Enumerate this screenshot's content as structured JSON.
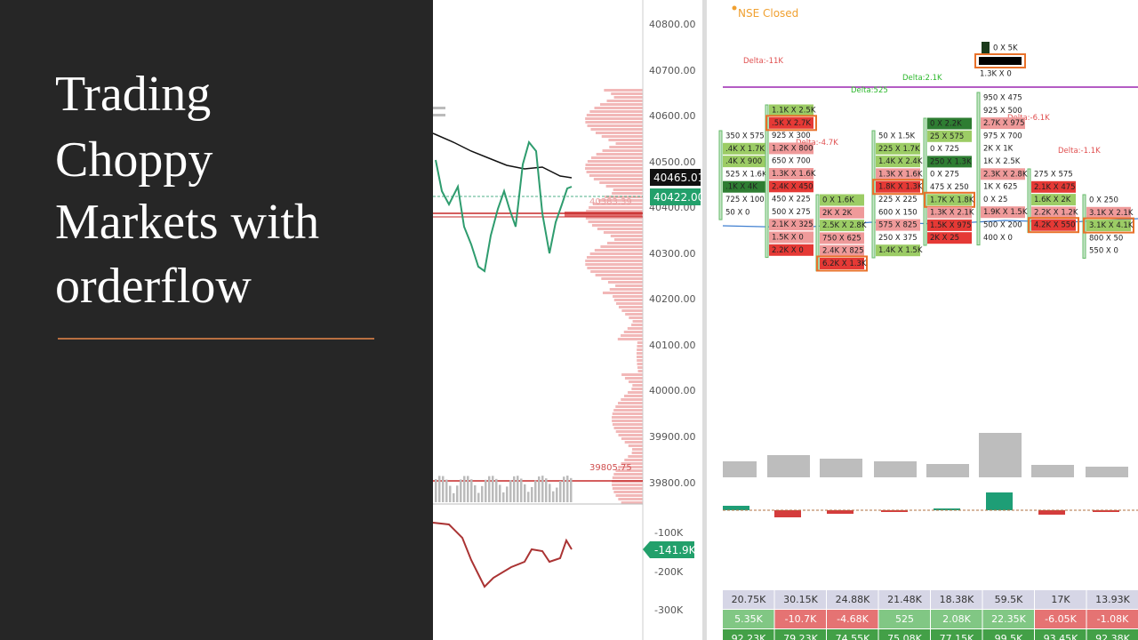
{
  "slide": {
    "title_lines": [
      "Trading",
      "Choppy",
      "Markets with",
      "orderflow"
    ]
  },
  "left_chart": {
    "price_axis": [
      "40800.00",
      "40700.00",
      "40600.00",
      "40500.00",
      "40400.00",
      "40300.00",
      "40200.00",
      "40100.00",
      "40000.00",
      "39900.00",
      "39800.00"
    ],
    "price_tags": [
      "40465.01",
      "40422.00"
    ],
    "profile_labels": [
      "40383.39",
      "39805.75"
    ],
    "delta_axis": [
      "-100K",
      "-200K",
      "-300K"
    ],
    "delta_tag": "-141.9K"
  },
  "right_chart": {
    "status": "NSE Closed",
    "delta_labels": [
      "Delta:-11K",
      "Delta:2.1K",
      "Delta:525",
      "Delta:-4.7K",
      "Delta:-6.1K",
      "Delta:-1.1K"
    ],
    "top_cells": [
      "0 X 5K",
      "1.3K X 0"
    ],
    "columns": [
      {
        "cells": [
          "350 X 575",
          ".4K X 1.7K",
          ".4K X 900",
          "525 X 1.6K",
          ".1K X 4K",
          "725 X 100",
          "50 X 0"
        ]
      },
      {
        "cells": [
          "1.1K X 2.5K",
          ".5K X 2.7K",
          "925 X 300",
          "1.2K X 800",
          "650 X 700",
          "1.3K X 1.6K",
          "2.4K X 450",
          "450 X 225",
          "500 X 275",
          "2.1K X 325",
          "1.5K X 0",
          "2.2K X 0"
        ]
      },
      {
        "cells": [
          "0 X 1.6K",
          "2K X 2K",
          "2.5K X 2.8K",
          "750 X 625",
          "2.4K X 825",
          "6.2K X 1.3K"
        ]
      },
      {
        "cells": [
          "50 X 1.5K",
          "225 X 1.7K",
          "1.4K X 2.4K",
          "1.3K X 1.6K",
          "1.8K X 1.3K",
          "225 X 225",
          "600 X 150",
          "575 X 825",
          "250 X 375",
          "1.4K X 1.5K"
        ]
      },
      {
        "cells": [
          "0 X 2.2K",
          "25 X 575",
          "0 X 725",
          "250 X 1.3K",
          "0 X 275",
          "475 X 250",
          "1.7K X 1.8K",
          "1.3K X 2.1K",
          "1.5K X 975",
          "2K X 25"
        ]
      },
      {
        "cells": [
          "950 X 475",
          "925 X 500",
          "2.7K X 975",
          "975 X 700",
          "2K X 1K",
          "1K X 2.5K",
          "2.3K X 2.8K",
          "1K X 625",
          "0 X 25",
          "1.9K X 1.5K",
          "500 X 200",
          "400 X 0"
        ]
      },
      {
        "cells": [
          "275 X 575",
          "2.1K X 475",
          "1.6K X 2K",
          "2.2K X 1.2K",
          "4.2K X 550"
        ]
      },
      {
        "cells": [
          "0 X 250",
          "3.1K X 2.1K",
          "3.1K X 4.1K",
          "800 X 50",
          "550 X 0"
        ]
      }
    ],
    "table": {
      "rows": [
        [
          "20.75K",
          "30.15K",
          "24.88K",
          "21.48K",
          "18.38K",
          "59.5K",
          "17K",
          "13.93K"
        ],
        [
          "5.35K",
          "-10.7K",
          "-4.68K",
          "525",
          "2.08K",
          "22.35K",
          "-6.05K",
          "-1.08K"
        ],
        [
          "92.23K",
          "79.23K",
          "74.55K",
          "75.08K",
          "77.15K",
          "99.5K",
          "93.45K",
          "92.38K"
        ]
      ]
    }
  }
}
